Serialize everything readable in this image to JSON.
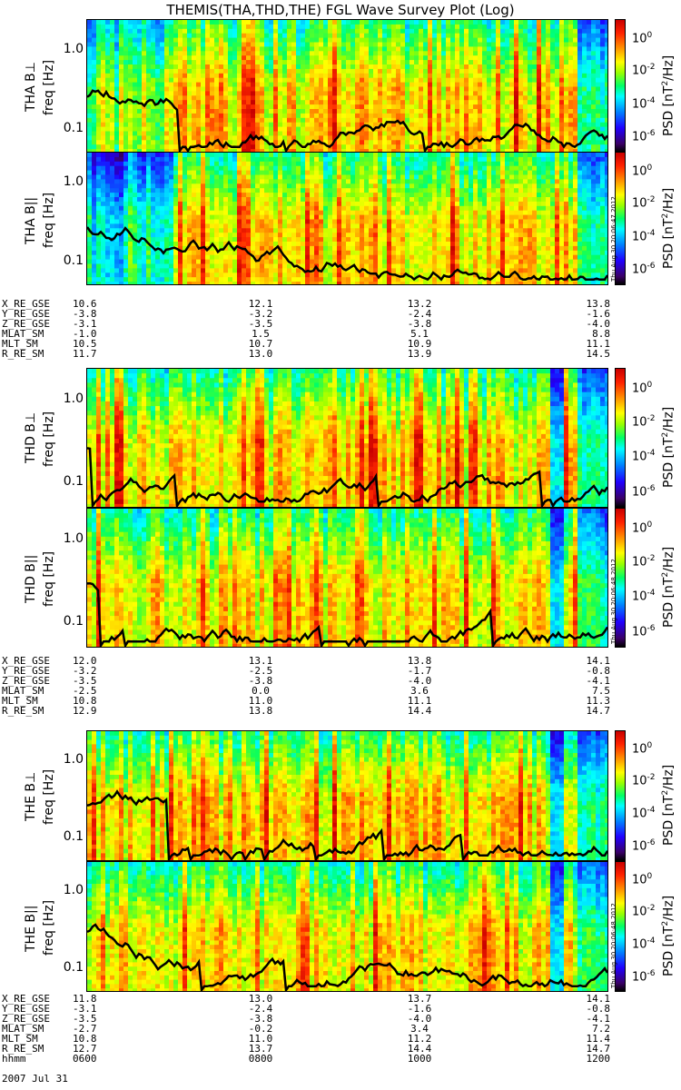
{
  "title": "THEMIS(THA,THD,THE) FGL Wave Survey Plot (Log)",
  "colorbar": {
    "label": "PSD [nT²/Hz]",
    "ticks": [
      "10^0",
      "10^-2",
      "10^-4",
      "10^-6"
    ]
  },
  "chart_data": [
    {
      "type": "heatmap",
      "ylabel": "THA B⊥",
      "ylabel2": "freq [Hz]",
      "yscale": "log",
      "yticks": [
        "1.0",
        "0.1"
      ],
      "overlay": "dashed lines present"
    },
    {
      "type": "heatmap",
      "ylabel": "THA B||",
      "ylabel2": "freq [Hz]",
      "yscale": "log",
      "yticks": [
        "1.0",
        "0.1"
      ],
      "stamp": "Thu Aug 30 20:06:47 2012"
    },
    {
      "type": "heatmap",
      "ylabel": "THD B⊥",
      "ylabel2": "freq [Hz]",
      "yscale": "log",
      "yticks": [
        "1.0",
        "0.1"
      ]
    },
    {
      "type": "heatmap",
      "ylabel": "THD B||",
      "ylabel2": "freq [Hz]",
      "yscale": "log",
      "yticks": [
        "1.0",
        "0.1"
      ],
      "stamp": "Thu Aug 30 20:06:48 2012"
    },
    {
      "type": "heatmap",
      "ylabel": "THE B⊥",
      "ylabel2": "freq [Hz]",
      "yscale": "log",
      "yticks": [
        "1.0",
        "0.1"
      ]
    },
    {
      "type": "heatmap",
      "ylabel": "THE B||",
      "ylabel2": "freq [Hz]",
      "yscale": "log",
      "yticks": [
        "1.0",
        "0.1"
      ],
      "stamp": "Thu Aug 30 20:06:48 2012"
    }
  ],
  "ephemeris": [
    {
      "rows": [
        {
          "label": "X_RE_GSE",
          "values": [
            "10.6",
            "12.1",
            "13.2",
            "13.8"
          ]
        },
        {
          "label": "Y_RE_GSE",
          "values": [
            "-3.8",
            "-3.2",
            "-2.4",
            "-1.6"
          ]
        },
        {
          "label": "Z_RE_GSE",
          "values": [
            "-3.1",
            "-3.5",
            "-3.8",
            "-4.0"
          ]
        },
        {
          "label": "MLAT_SM",
          "values": [
            "-1.0",
            "1.5",
            "5.1",
            "8.8"
          ]
        },
        {
          "label": "MLT_SM",
          "values": [
            "10.5",
            "10.7",
            "10.9",
            "11.1"
          ]
        },
        {
          "label": "R_RE_SM",
          "values": [
            "11.7",
            "13.0",
            "13.9",
            "14.5"
          ]
        }
      ]
    },
    {
      "rows": [
        {
          "label": "X_RE_GSE",
          "values": [
            "12.0",
            "13.1",
            "13.8",
            "14.1"
          ]
        },
        {
          "label": "Y_RE_GSE",
          "values": [
            "-3.2",
            "-2.5",
            "-1.7",
            "-0.8"
          ]
        },
        {
          "label": "Z_RE_GSE",
          "values": [
            "-3.5",
            "-3.8",
            "-4.0",
            "-4.1"
          ]
        },
        {
          "label": "MLAT_SM",
          "values": [
            "-2.5",
            "0.0",
            "3.6",
            "7.5"
          ]
        },
        {
          "label": "MLT_SM",
          "values": [
            "10.8",
            "11.0",
            "11.1",
            "11.3"
          ]
        },
        {
          "label": "R_RE_SM",
          "values": [
            "12.9",
            "13.8",
            "14.4",
            "14.7"
          ]
        }
      ]
    },
    {
      "rows": [
        {
          "label": "X_RE_GSE",
          "values": [
            "11.8",
            "13.0",
            "13.7",
            "14.1"
          ]
        },
        {
          "label": "Y_RE_GSE",
          "values": [
            "-3.1",
            "-2.4",
            "-1.6",
            "-0.8"
          ]
        },
        {
          "label": "Z_RE_GSE",
          "values": [
            "-3.5",
            "-3.8",
            "-4.0",
            "-4.1"
          ]
        },
        {
          "label": "MLAT_SM",
          "values": [
            "-2.7",
            "-0.2",
            "3.4",
            "7.2"
          ]
        },
        {
          "label": "MLT_SM",
          "values": [
            "10.8",
            "11.0",
            "11.2",
            "11.4"
          ]
        },
        {
          "label": "R_RE_SM",
          "values": [
            "12.7",
            "13.7",
            "14.4",
            "14.7"
          ]
        },
        {
          "label": "hhmm",
          "values": [
            "0600",
            "0800",
            "1000",
            "1200"
          ]
        }
      ]
    }
  ],
  "date": "2007 Jul 31"
}
